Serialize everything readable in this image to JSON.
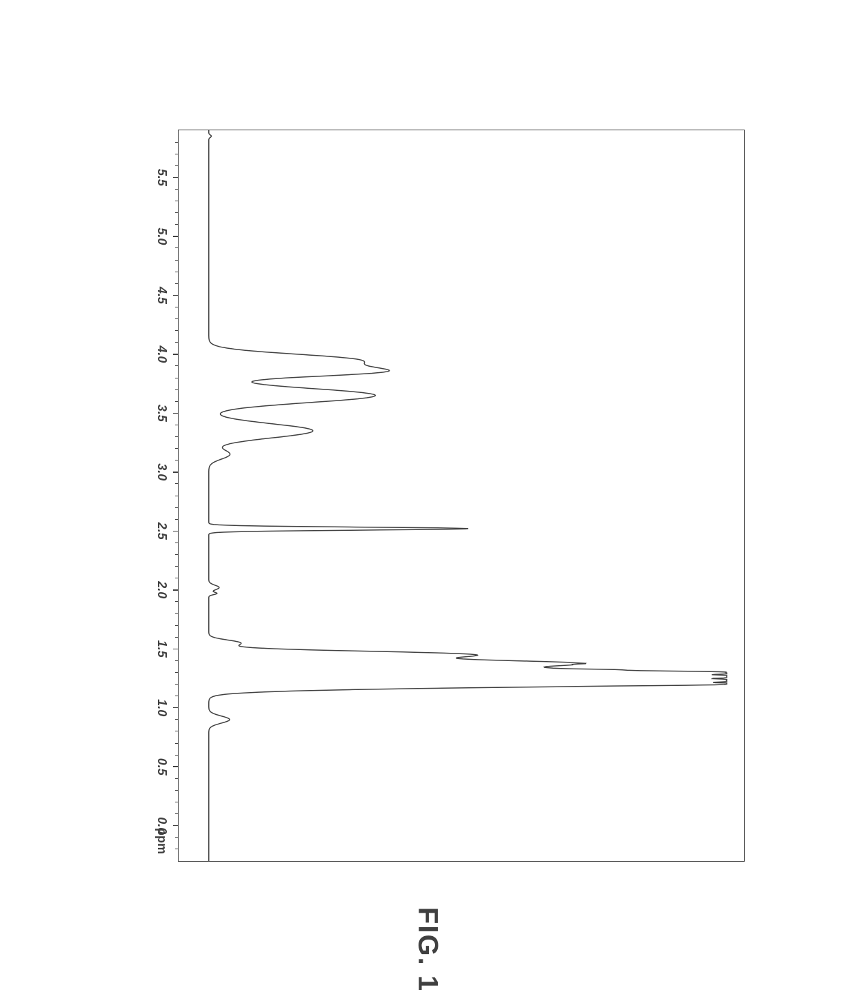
{
  "figure_label": "FIG. 1",
  "spectrum": {
    "type": "line",
    "xlabel_unit": "ppm",
    "xlim": [
      -0.3,
      5.9
    ],
    "x_axis_reversed": true,
    "tick_labels": [
      "5.5",
      "5.0",
      "4.5",
      "4.0",
      "3.5",
      "3.0",
      "2.5",
      "2.0",
      "1.5",
      "1.0",
      "0.5",
      "0.0"
    ],
    "tick_values": [
      5.5,
      5.0,
      4.5,
      4.0,
      3.5,
      3.0,
      2.5,
      2.0,
      1.5,
      1.0,
      0.5,
      0.0
    ],
    "minor_tick_step": 0.1,
    "line_color": "#404040",
    "line_width": 1.5,
    "background_color": "#ffffff",
    "frame_color": "#404040",
    "label_fontsize": 18,
    "peaks": [
      {
        "ppm": 5.85,
        "intensity": 0.005,
        "width": 0.02
      },
      {
        "ppm": 3.95,
        "intensity": 0.28,
        "width": 0.1,
        "shoulder": true
      },
      {
        "ppm": 3.85,
        "intensity": 0.3,
        "width": 0.08
      },
      {
        "ppm": 3.65,
        "intensity": 0.32,
        "width": 0.12
      },
      {
        "ppm": 3.35,
        "intensity": 0.2,
        "width": 0.12
      },
      {
        "ppm": 3.15,
        "intensity": 0.04,
        "width": 0.08
      },
      {
        "ppm": 2.52,
        "intensity": 0.5,
        "width": 0.025
      },
      {
        "ppm": 2.02,
        "intensity": 0.02,
        "width": 0.04
      },
      {
        "ppm": 1.97,
        "intensity": 0.015,
        "width": 0.02
      },
      {
        "ppm": 1.55,
        "intensity": 0.06,
        "width": 0.05
      },
      {
        "ppm": 1.45,
        "intensity": 0.5,
        "width": 0.06
      },
      {
        "ppm": 1.38,
        "intensity": 0.55,
        "width": 0.05
      },
      {
        "ppm": 1.28,
        "intensity": 1.0,
        "width": 0.1,
        "noisy_top": true
      },
      {
        "ppm": 1.22,
        "intensity": 0.92,
        "width": 0.08
      },
      {
        "ppm": 0.9,
        "intensity": 0.04,
        "width": 0.06
      }
    ],
    "baseline": 0.005
  }
}
